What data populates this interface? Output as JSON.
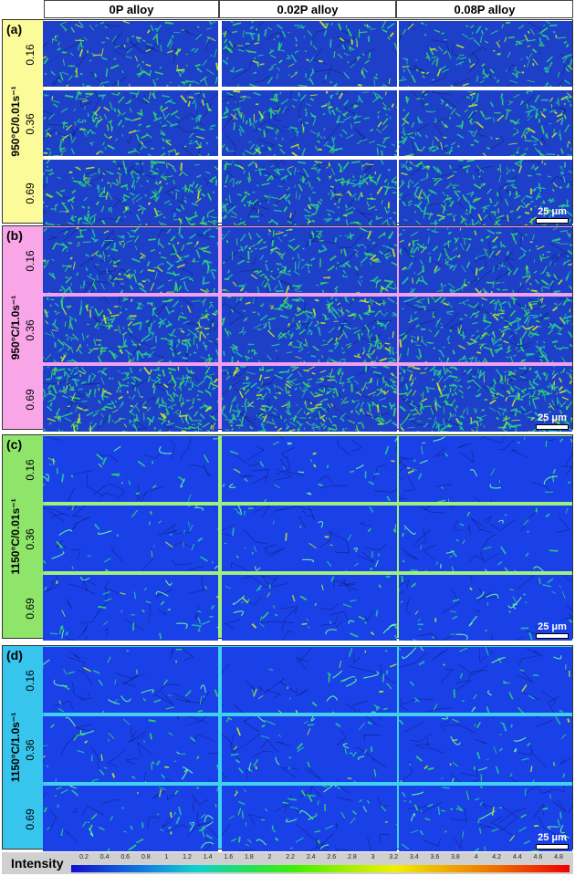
{
  "columns": [
    "0P alloy",
    "0.02P alloy",
    "0.08P alloy"
  ],
  "groups": [
    {
      "letter": "(a)",
      "condition": "950°C/0.01s⁻¹",
      "color": "#fbfb9a",
      "divider": "#ffffff",
      "density": 0.55,
      "shade": "#1e3fc8"
    },
    {
      "letter": "(b)",
      "condition": "950°C/1.0s⁻¹",
      "color": "#f9a6e8",
      "divider": "#f0a0ee",
      "density": 0.75,
      "shade": "#1e3fc8"
    },
    {
      "letter": "(c)",
      "condition": "1150°C/0.01s⁻¹",
      "color": "#8fe46a",
      "divider": "#a0f080",
      "density": 0.08,
      "shade": "#1a40e8"
    },
    {
      "letter": "(d)",
      "condition": "1150°C/1.0s⁻¹",
      "color": "#37c5ee",
      "divider": "#40d0f0",
      "density": 0.1,
      "shade": "#1a40e8"
    }
  ],
  "strains": [
    "0.16",
    "0.36",
    "0.69"
  ],
  "scalebar": "25 μm",
  "legend": {
    "title": "Intensity",
    "ticks": [
      "0.2",
      "0.4",
      "0.6",
      "0.8",
      "1",
      "1.2",
      "1.4",
      "1.6",
      "1.8",
      "2",
      "2.2",
      "2.4",
      "2.6",
      "2.8",
      "3",
      "3.2",
      "3.4",
      "3.6",
      "3.8",
      "4",
      "4.2",
      "4.4",
      "4.6",
      "4.8"
    ]
  }
}
